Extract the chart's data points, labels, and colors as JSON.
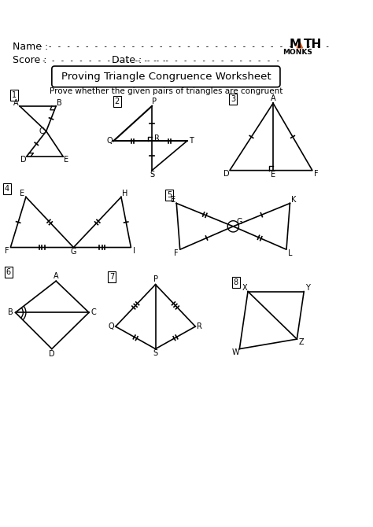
{
  "title": "Proving Triangle Congruence Worksheet",
  "subtitle": "Prove whether the given pairs of triangles are congruent",
  "name_label": "Name :",
  "score_label": "Score :",
  "date_label": "Date :",
  "bg_color": "#ffffff",
  "text_color": "#000000",
  "logo_A_color": "#e05a1a"
}
